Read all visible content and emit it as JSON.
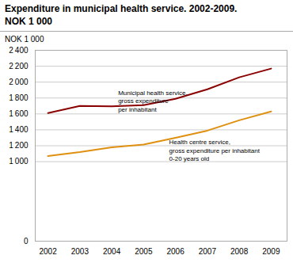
{
  "chart_data": {
    "type": "line",
    "title": "Expenditure in municipal health service. 2002-2009.",
    "subtitle": "NOK 1 000",
    "ylabel": "NOK 1 000",
    "x": [
      2002,
      2003,
      2004,
      2005,
      2006,
      2007,
      2008,
      2009
    ],
    "series": [
      {
        "color": "#8B0000",
        "values": [
          1610,
          1700,
          1695,
          1710,
          1790,
          1910,
          2060,
          2170
        ]
      },
      {
        "color": "#E09010",
        "values": [
          1070,
          1120,
          1180,
          1215,
          1300,
          1390,
          1520,
          1630
        ]
      }
    ],
    "annotations": [
      {
        "text": "Municipal health service,\ngross expenditure\nper inhabitant",
        "x": 2004.2,
        "y": 1910
      },
      {
        "text": "Health centre service,\ngross expenditure per inhabitant\n0-20 years old",
        "x": 2005.8,
        "y": 1290
      }
    ],
    "xlim": [
      2001.6,
      2009.5
    ],
    "xticks": [
      2002,
      2003,
      2004,
      2005,
      2006,
      2007,
      2008,
      2009
    ],
    "ylim": [
      0,
      2400
    ],
    "yticks": [
      0,
      {
        "value": 1000,
        "label": "1 000"
      },
      {
        "value": 1200,
        "label": "1 200"
      },
      {
        "value": 1400,
        "label": "1 400"
      },
      {
        "value": 1600,
        "label": "1 600"
      },
      {
        "value": 1800,
        "label": "1 800"
      },
      {
        "value": 2000,
        "label": "2 000"
      },
      {
        "value": 2200,
        "label": "2 200"
      },
      {
        "value": 2400,
        "label": "2 400"
      }
    ],
    "grid": true
  }
}
